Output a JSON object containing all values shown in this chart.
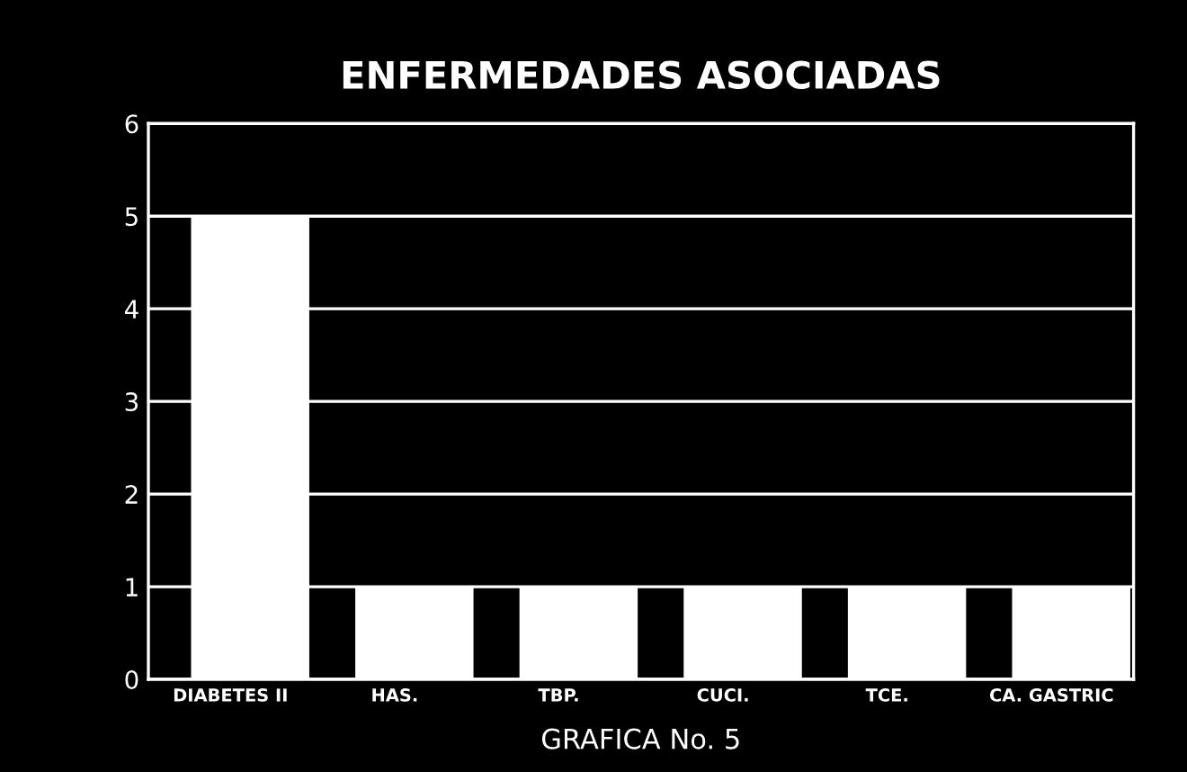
{
  "chart_data": {
    "type": "bar",
    "title": "ENFERMEDADES ASOCIADAS",
    "categories": [
      "DIABETES II",
      "HAS.",
      "TBP.",
      "CUCI.",
      "TCE.",
      "CA. GASTRIC"
    ],
    "values": [
      5,
      1,
      1,
      1,
      1,
      1
    ],
    "color": "#ffffff",
    "ylim": [
      0,
      6
    ],
    "yticks": [
      0,
      1,
      2,
      3,
      4,
      5,
      6
    ],
    "grid": "y",
    "annotations": [
      "GRAFICA No. 5"
    ]
  }
}
